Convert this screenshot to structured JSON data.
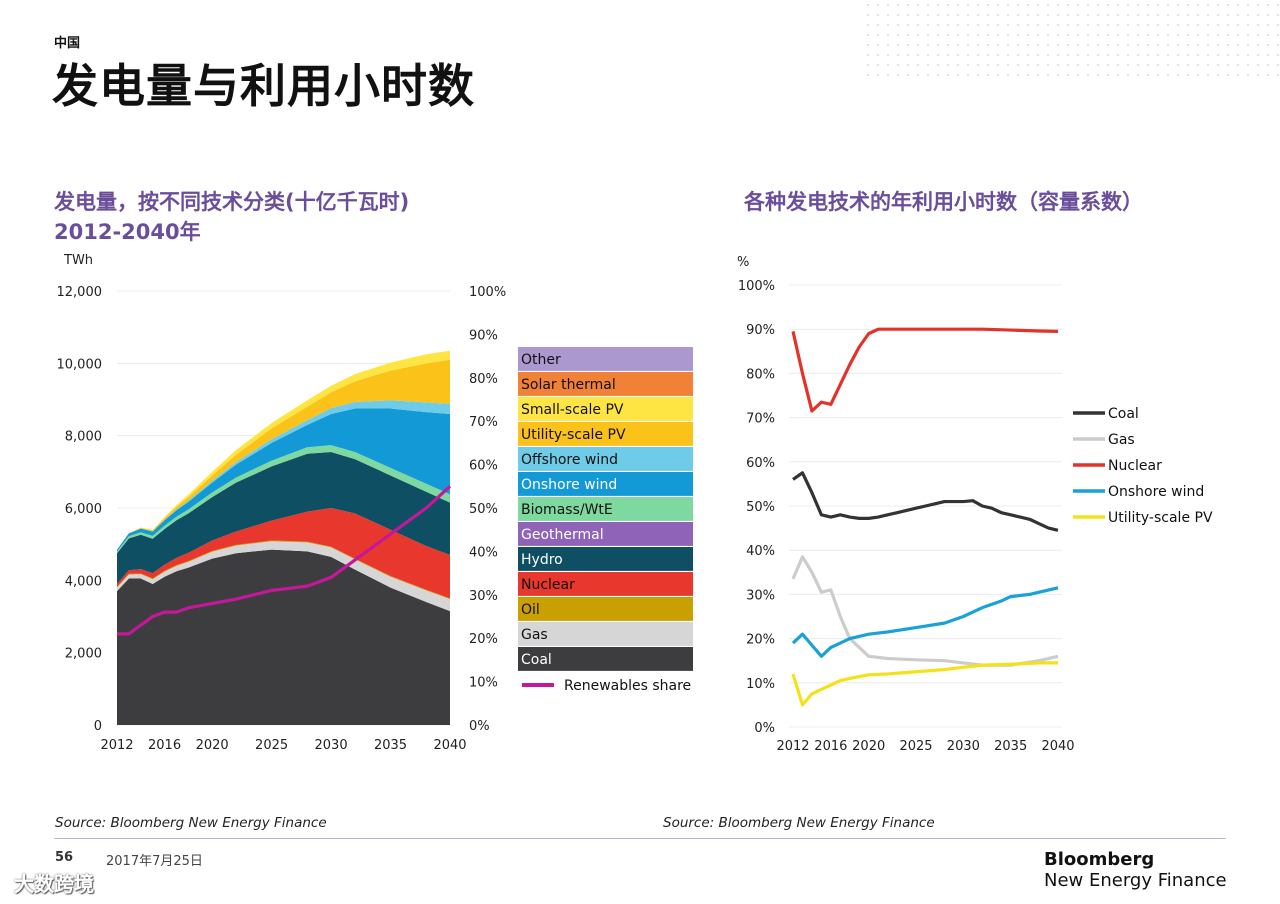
{
  "header": {
    "region": "中国",
    "title": "发电量与利用小时数"
  },
  "left_chart": {
    "subtitle_line1": "发电量，按不同技术分类(十亿千瓦时)",
    "subtitle_line2": "2012-2040年",
    "source": "Source: Bloomberg New Energy Finance"
  },
  "right_chart": {
    "subtitle": "各种发电技术的年利用小时数（容量系数）",
    "source": "Source: Bloomberg New Energy Finance"
  },
  "footer": {
    "page_number": "56",
    "date": "2017年7月25日",
    "brand_line1": "Bloomberg",
    "brand_line2": "New Energy Finance",
    "watermark": "大数跨境"
  },
  "chart_data": [
    {
      "type": "area",
      "title": "发电量，按不同技术分类(十亿千瓦时) 2012-2040年",
      "ylabel": "TWh",
      "ylim": [
        0,
        12000
      ],
      "y_ticks": [
        "0",
        "2,000",
        "4,000",
        "6,000",
        "8,000",
        "10,000",
        "12,000"
      ],
      "y2lim": [
        0,
        100
      ],
      "y2_ticks": [
        "0%",
        "10%",
        "20%",
        "30%",
        "40%",
        "50%",
        "60%",
        "70%",
        "80%",
        "90%",
        "100%"
      ],
      "x_ticks": [
        "2012",
        "2016",
        "2020",
        "2025",
        "2030",
        "2035",
        "2040"
      ],
      "x": [
        2012,
        2013,
        2014,
        2015,
        2016,
        2017,
        2018,
        2020,
        2022,
        2025,
        2028,
        2030,
        2032,
        2035,
        2038,
        2040
      ],
      "stacked_cumulative_totals": true,
      "series": [
        {
          "name": "Coal",
          "color": "#3d3d3f",
          "values": [
            3700,
            4050,
            4050,
            3900,
            4100,
            4250,
            4350,
            4600,
            4750,
            4850,
            4800,
            4650,
            4300,
            3800,
            3400,
            3150
          ]
        },
        {
          "name": "Gas",
          "color": "#d6d6d6",
          "values": [
            3800,
            4160,
            4170,
            4030,
            4240,
            4400,
            4510,
            4790,
            4960,
            5080,
            5050,
            4910,
            4580,
            4100,
            3720,
            3480
          ]
        },
        {
          "name": "Oil",
          "color": "#c9a000",
          "values": [
            3820,
            4180,
            4190,
            4050,
            4260,
            4420,
            4530,
            4810,
            4980,
            5100,
            5070,
            4930,
            4600,
            4120,
            3740,
            3500
          ]
        },
        {
          "name": "Nuclear",
          "color": "#e8382d",
          "values": [
            3900,
            4280,
            4310,
            4200,
            4430,
            4620,
            4760,
            5100,
            5350,
            5650,
            5900,
            6000,
            5850,
            5400,
            4950,
            4700
          ]
        },
        {
          "name": "Hydro",
          "color": "#0e4f63",
          "values": [
            4750,
            5160,
            5260,
            5150,
            5420,
            5660,
            5850,
            6300,
            6700,
            7150,
            7500,
            7550,
            7350,
            6900,
            6450,
            6150
          ]
        },
        {
          "name": "Geothermal",
          "color": "#8e63b8",
          "values": [
            4750,
            5160,
            5260,
            5150,
            5420,
            5660,
            5850,
            6300,
            6700,
            7150,
            7500,
            7550,
            7350,
            6900,
            6450,
            6150
          ]
        },
        {
          "name": "Biomass/WtE",
          "color": "#7ed9a0",
          "values": [
            4800,
            5220,
            5330,
            5230,
            5510,
            5760,
            5960,
            6430,
            6840,
            7310,
            7680,
            7740,
            7550,
            7110,
            6670,
            6380
          ]
        },
        {
          "name": "Onshore wind",
          "color": "#139ad6",
          "values": [
            4850,
            5300,
            5430,
            5350,
            5660,
            5940,
            6170,
            6700,
            7200,
            7800,
            8300,
            8600,
            8750,
            8750,
            8650,
            8600
          ]
        },
        {
          "name": "Offshore wind",
          "color": "#6fcce8",
          "values": [
            4850,
            5300,
            5430,
            5350,
            5670,
            5960,
            6200,
            6750,
            7270,
            7900,
            8430,
            8760,
            8930,
            8980,
            8920,
            8880
          ]
        },
        {
          "name": "Utility-scale PV",
          "color": "#fbc21a",
          "values": [
            4850,
            5310,
            5450,
            5380,
            5720,
            6030,
            6300,
            6900,
            7470,
            8200,
            8800,
            9200,
            9500,
            9800,
            10000,
            10100
          ]
        },
        {
          "name": "Small-scale PV",
          "color": "#ffe544",
          "values": [
            4850,
            5310,
            5460,
            5400,
            5750,
            6080,
            6370,
            7000,
            7600,
            8350,
            8980,
            9380,
            9700,
            10020,
            10250,
            10350
          ]
        },
        {
          "name": "Solar thermal",
          "color": "#f28138",
          "values": [
            4850,
            5310,
            5460,
            5400,
            5750,
            6080,
            6370,
            7000,
            7600,
            8350,
            8980,
            9380,
            9700,
            10020,
            10250,
            10350
          ]
        },
        {
          "name": "Other",
          "color": "#ab98cf",
          "values": [
            4850,
            5310,
            5460,
            5400,
            5750,
            6080,
            6370,
            7000,
            7600,
            8350,
            8980,
            9380,
            9700,
            10020,
            10250,
            10350
          ]
        }
      ],
      "line_series": [
        {
          "name": "Renewables share",
          "color": "#c4189a",
          "axis": "right",
          "x": [
            2012,
            2013,
            2014,
            2015,
            2016,
            2017,
            2018,
            2020,
            2022,
            2025,
            2028,
            2030,
            2032,
            2035,
            2038,
            2040
          ],
          "values": [
            21,
            21,
            23,
            25,
            26,
            26,
            27,
            28,
            29,
            31,
            32,
            34,
            38,
            44,
            50,
            55
          ]
        }
      ],
      "legend": [
        "Other",
        "Solar thermal",
        "Small-scale PV",
        "Utility-scale PV",
        "Offshore wind",
        "Onshore wind",
        "Biomass/WtE",
        "Geothermal",
        "Hydro",
        "Nuclear",
        "Oil",
        "Gas",
        "Coal",
        "Renewables share"
      ],
      "legend_placement": "right",
      "grid": true
    },
    {
      "type": "line",
      "title": "各种发电技术的年利用小时数（容量系数）",
      "ylabel": "%",
      "ylim": [
        0,
        100
      ],
      "y_ticks": [
        "0%",
        "10%",
        "20%",
        "30%",
        "40%",
        "50%",
        "60%",
        "70%",
        "80%",
        "90%",
        "100%"
      ],
      "x_ticks": [
        "2012",
        "2016",
        "2020",
        "2025",
        "2030",
        "2035",
        "2040"
      ],
      "legend_placement": "right",
      "grid": true,
      "series": [
        {
          "name": "Coal",
          "color": "#333333",
          "x": [
            2012,
            2013,
            2014,
            2015,
            2016,
            2017,
            2018,
            2019,
            2020,
            2021,
            2022,
            2023,
            2024,
            2025,
            2026,
            2027,
            2028,
            2029,
            2030,
            2031,
            2032,
            2033,
            2034,
            2035,
            2036,
            2037,
            2038,
            2039,
            2040
          ],
          "values": [
            56,
            57.5,
            53,
            48,
            47.5,
            48,
            47.5,
            47.2,
            47.2,
            47.5,
            48,
            48.5,
            49,
            49.5,
            50,
            50.5,
            51,
            51,
            51,
            51.2,
            50,
            49.5,
            48.5,
            48,
            47.5,
            47,
            46,
            45,
            44.5
          ]
        },
        {
          "name": "Gas",
          "color": "#cccccc",
          "x": [
            2012,
            2013,
            2014,
            2015,
            2016,
            2017,
            2018,
            2019,
            2020,
            2022,
            2025,
            2028,
            2030,
            2032,
            2035,
            2038,
            2040
          ],
          "values": [
            33.5,
            38.5,
            35,
            30.5,
            31,
            25,
            20,
            18,
            16,
            15.5,
            15.2,
            15,
            14.5,
            14,
            14,
            15,
            16
          ]
        },
        {
          "name": "Nuclear",
          "color": "#e2322a",
          "x": [
            2012,
            2013,
            2014,
            2015,
            2016,
            2017,
            2018,
            2019,
            2020,
            2021,
            2022,
            2025,
            2028,
            2030,
            2032,
            2035,
            2038,
            2040
          ],
          "values": [
            89.5,
            80,
            71.5,
            73.5,
            73,
            77.5,
            82,
            86,
            89,
            90,
            90,
            90,
            90,
            90,
            90,
            89.8,
            89.6,
            89.5
          ]
        },
        {
          "name": "Onshore wind",
          "color": "#1aa1d6",
          "x": [
            2012,
            2013,
            2014,
            2015,
            2016,
            2017,
            2018,
            2020,
            2022,
            2025,
            2028,
            2030,
            2031,
            2032,
            2034,
            2035,
            2037,
            2038,
            2040
          ],
          "values": [
            19,
            21,
            18.5,
            16,
            18,
            19,
            20,
            21,
            21.5,
            22.5,
            23.5,
            25,
            26,
            27,
            28.5,
            29.5,
            30,
            30.5,
            31.5
          ]
        },
        {
          "name": "Utility-scale PV",
          "color": "#f5e11a",
          "x": [
            2012,
            2013,
            2014,
            2015,
            2016,
            2017,
            2018,
            2020,
            2022,
            2025,
            2028,
            2030,
            2032,
            2035,
            2038,
            2040
          ],
          "values": [
            12,
            5,
            7.5,
            8.5,
            9.5,
            10.5,
            11,
            11.8,
            12,
            12.5,
            13,
            13.5,
            14,
            14.2,
            14.5,
            14.5
          ]
        }
      ]
    }
  ]
}
